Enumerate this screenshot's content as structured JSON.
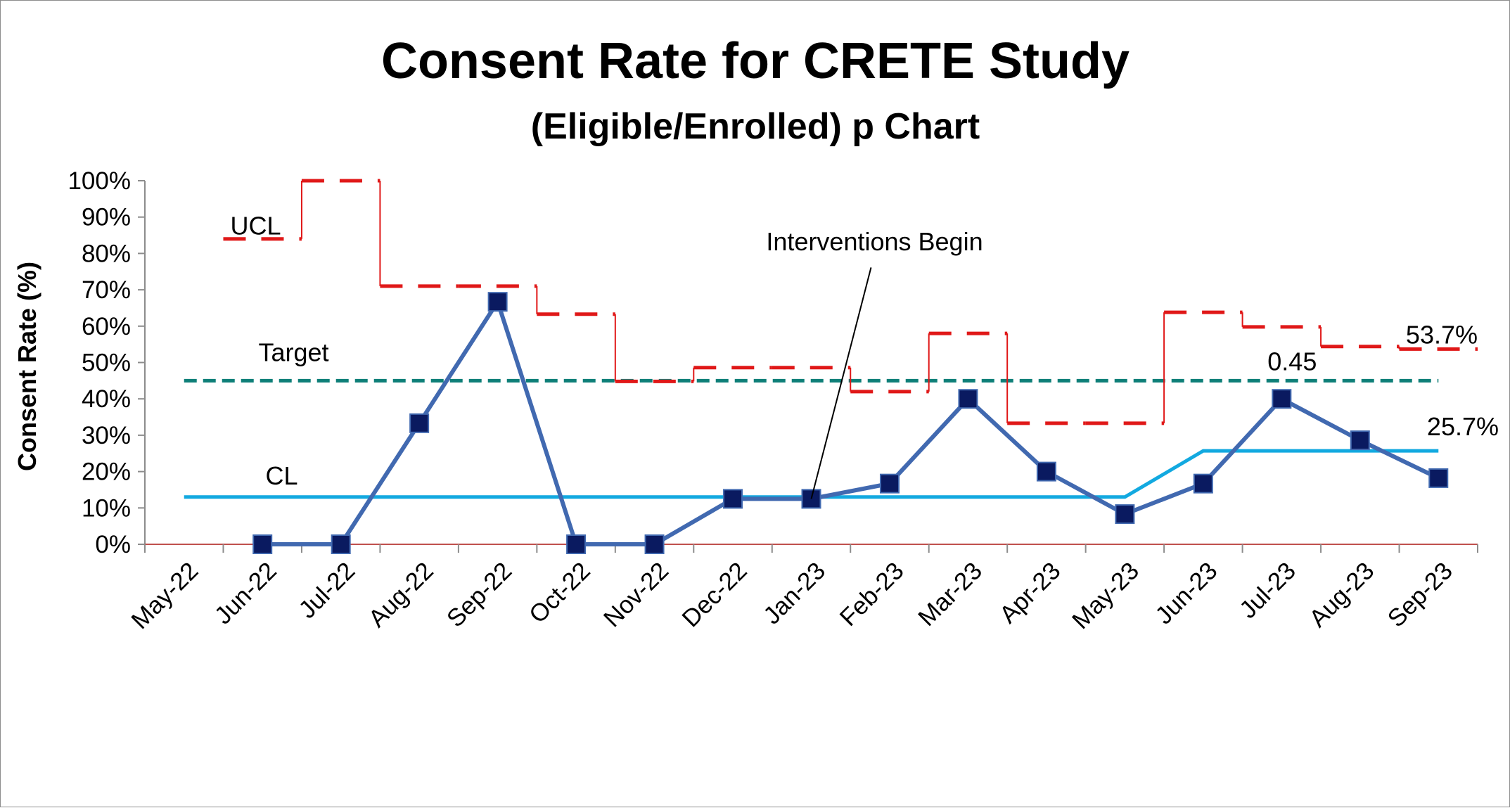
{
  "chart_data": {
    "type": "line",
    "title": "Consent Rate for CRETE Study",
    "subtitle": "(Eligible/Enrolled) p Chart",
    "xlabel": "",
    "ylabel": "Consent Rate (%)",
    "ylim": [
      0,
      100
    ],
    "y_tick_labels": [
      "0%",
      "10%",
      "20%",
      "30%",
      "40%",
      "50%",
      "60%",
      "70%",
      "80%",
      "90%",
      "100%"
    ],
    "categories": [
      "May-22",
      "Jun-22",
      "Jul-22",
      "Aug-22",
      "Sep-22",
      "Oct-22",
      "Nov-22",
      "Dec-22",
      "Jan-23",
      "Feb-23",
      "Mar-23",
      "Apr-23",
      "May-23",
      "Jun-23",
      "Jul-23",
      "Aug-23",
      "Sep-23"
    ],
    "grid": false,
    "colors": {
      "consent_rate": "#4169b0",
      "marker": "#0a1a60",
      "ucl": "#e01818",
      "target": "#0e7f78",
      "cl": "#12a9e0",
      "axis": "#c0504d"
    },
    "series": [
      {
        "key": "consent_rate",
        "style": "line-with-square-markers",
        "values": [
          null,
          0,
          0,
          33.3,
          66.7,
          0,
          0,
          12.5,
          12.5,
          16.7,
          40,
          20,
          8.3,
          16.7,
          40,
          28.6,
          18.2
        ]
      },
      {
        "key": "ucl",
        "name": "UCL",
        "style": "dashed-step",
        "values": [
          null,
          84,
          100,
          71,
          71,
          63.3,
          44.8,
          48.6,
          48.6,
          42,
          58,
          33.3,
          33.3,
          63.8,
          59.8,
          54.4,
          53.7
        ]
      },
      {
        "key": "target",
        "name": "Target",
        "style": "dashed",
        "value": 45
      },
      {
        "key": "cl",
        "name": "CL",
        "style": "solid-step",
        "values": [
          13,
          13,
          13,
          13,
          13,
          13,
          13,
          13,
          13,
          13,
          13,
          13,
          13,
          25.7,
          25.7,
          25.7,
          25.7
        ]
      }
    ],
    "annotations": {
      "ucl_label": "UCL",
      "target_label": "Target",
      "cl_label": "CL",
      "interventions_label": "Interventions Begin",
      "interventions_at": "Jan-23",
      "target_value_label": "0.45",
      "ucl_value_label": "53.7%",
      "cl_value_label": "25.7%"
    }
  }
}
